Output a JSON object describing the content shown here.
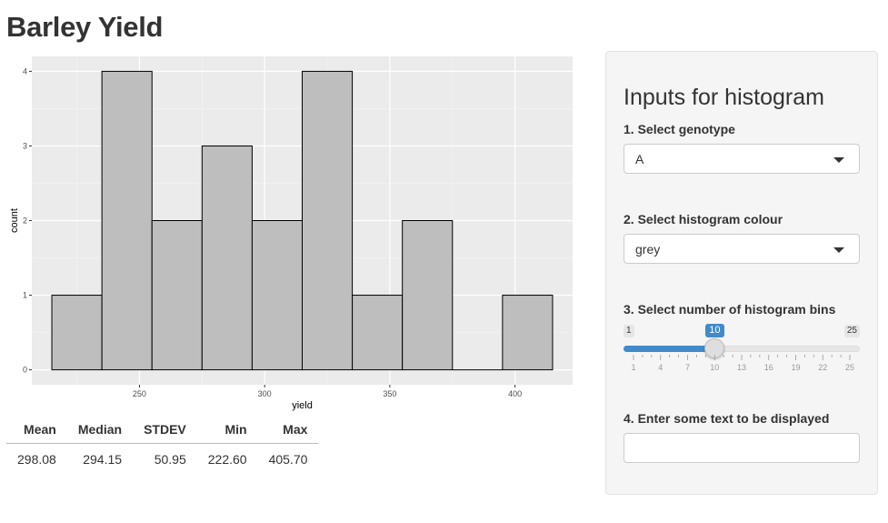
{
  "page": {
    "title": "Barley Yield"
  },
  "chart_data": {
    "type": "bar",
    "subtype": "histogram",
    "xlabel": "yield",
    "ylabel": "count",
    "bins": [
      {
        "x0": 215,
        "x1": 235,
        "count": 1
      },
      {
        "x0": 235,
        "x1": 255,
        "count": 4
      },
      {
        "x0": 255,
        "x1": 275,
        "count": 2
      },
      {
        "x0": 275,
        "x1": 295,
        "count": 3
      },
      {
        "x0": 295,
        "x1": 315,
        "count": 2
      },
      {
        "x0": 315,
        "x1": 335,
        "count": 4
      },
      {
        "x0": 335,
        "x1": 355,
        "count": 1
      },
      {
        "x0": 355,
        "x1": 375,
        "count": 2
      },
      {
        "x0": 375,
        "x1": 395,
        "count": 0
      },
      {
        "x0": 395,
        "x1": 415,
        "count": 1
      }
    ],
    "xlim": [
      207,
      423
    ],
    "ylim": [
      -0.2,
      4.2
    ],
    "x_ticks": [
      250,
      300,
      350,
      400
    ],
    "y_ticks": [
      0,
      1,
      2,
      3,
      4
    ],
    "fill_color": "#bebebe",
    "panel_background": "#ebebeb",
    "grid": true
  },
  "summary_table": {
    "headers": [
      "Mean",
      "Median",
      "STDEV",
      "Min",
      "Max"
    ],
    "values": [
      "298.08",
      "294.15",
      "50.95",
      "222.60",
      "405.70"
    ]
  },
  "sidebar": {
    "title": "Inputs for histogram",
    "genotype": {
      "label": "1. Select genotype",
      "value": "A"
    },
    "colour": {
      "label": "2. Select histogram colour",
      "value": "grey"
    },
    "bins": {
      "label": "3. Select number of histogram bins",
      "min": 1,
      "max": 25,
      "value": 10,
      "min_label": "1",
      "max_label": "25",
      "value_label": "10",
      "tick_labels": [
        "1",
        "4",
        "7",
        "10",
        "13",
        "16",
        "19",
        "22",
        "25"
      ]
    },
    "text": {
      "label": "4. Enter some text to be displayed",
      "value": ""
    }
  },
  "colors": {
    "accent": "#428bca",
    "well": "#f5f5f5"
  }
}
